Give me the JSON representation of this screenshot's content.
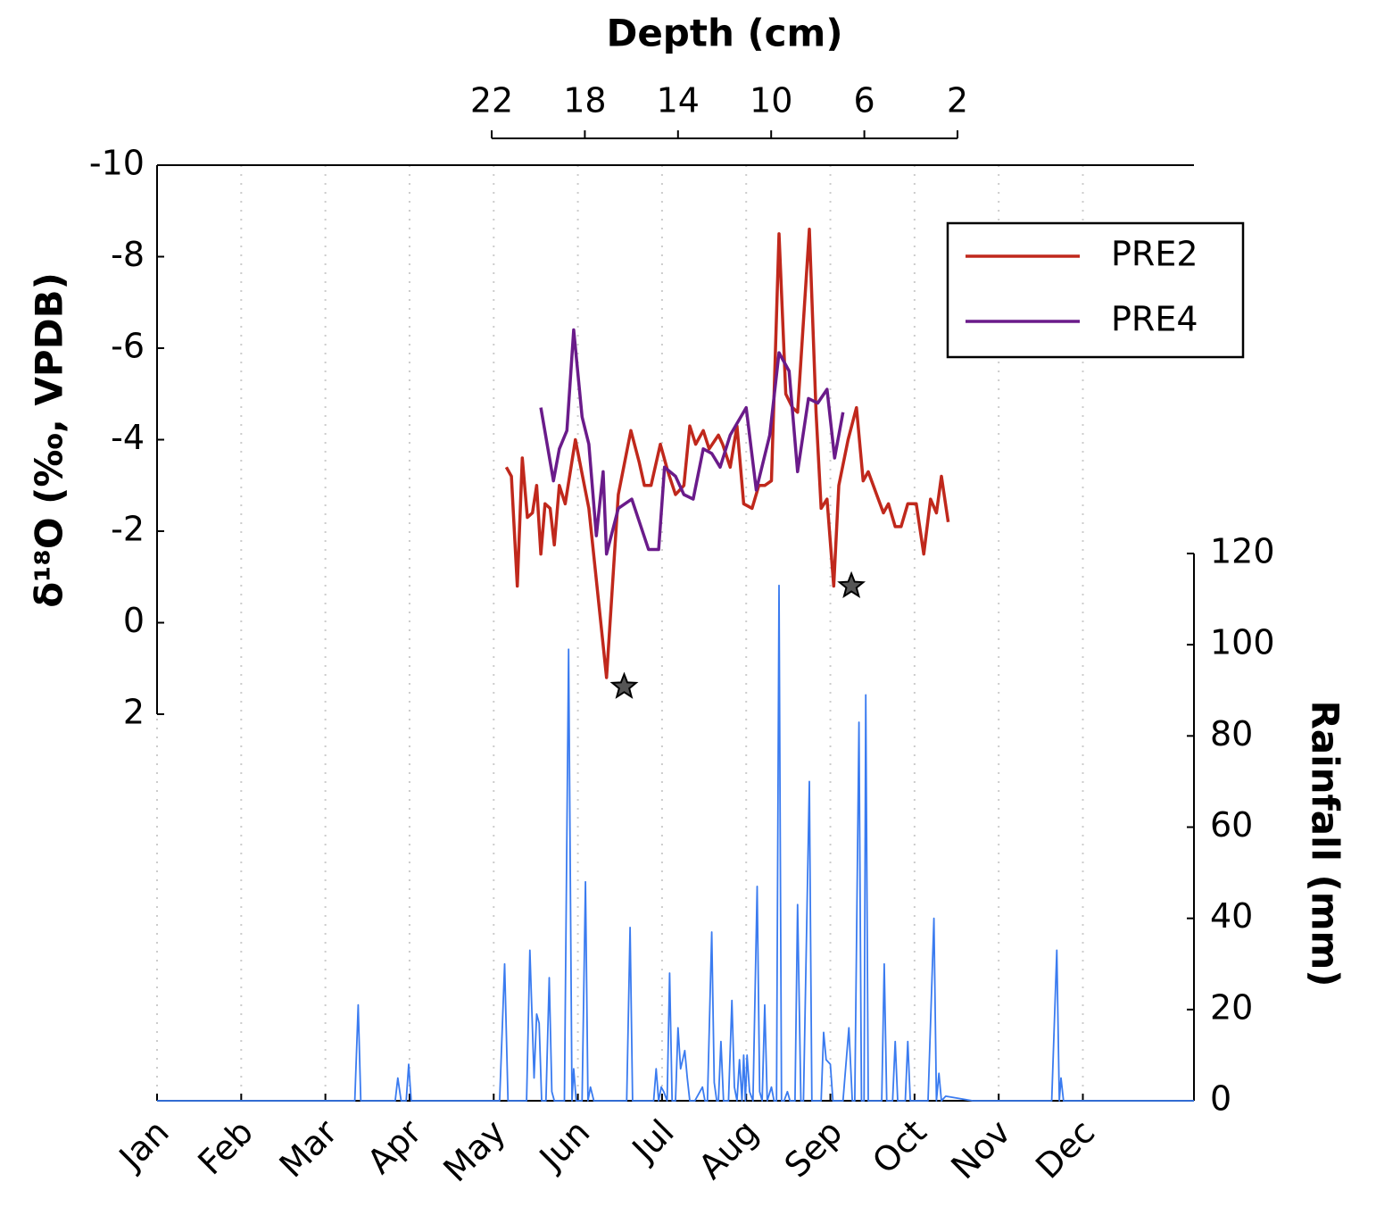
{
  "chart_data": {
    "type": "line",
    "x2label": "Depth (cm)",
    "ylabel": "δ¹⁸O (‰, VPDB)",
    "y2label": "Rainfall (mm)",
    "xlim": [
      0,
      12.32
    ],
    "xticks": [
      {
        "value": 0,
        "label": "Jan"
      },
      {
        "value": 1,
        "label": "Feb"
      },
      {
        "value": 2,
        "label": "Mar"
      },
      {
        "value": 3,
        "label": "Apr"
      },
      {
        "value": 4,
        "label": "May"
      },
      {
        "value": 5,
        "label": "Jun"
      },
      {
        "value": 6,
        "label": "Jul"
      },
      {
        "value": 7,
        "label": "Aug"
      },
      {
        "value": 8,
        "label": "Sep"
      },
      {
        "value": 9,
        "label": "Oct"
      },
      {
        "value": 10,
        "label": "Nov"
      },
      {
        "value": 11,
        "label": "Dec"
      }
    ],
    "x2lim": [
      22,
      2
    ],
    "x2ticks": [
      22,
      18,
      14,
      10,
      6,
      2
    ],
    "ylim": [
      -10,
      2
    ],
    "yticks": [
      -10,
      -8,
      -6,
      -4,
      -2,
      0,
      2
    ],
    "y2lim": [
      0,
      120
    ],
    "y2ticks": [
      0,
      20,
      40,
      60,
      80,
      100,
      120
    ],
    "grid": true,
    "legend": "upper right",
    "series": [
      {
        "name": "PRE2",
        "color": "#c0281c",
        "axis": "y",
        "x": [
          4.15,
          4.21,
          4.28,
          4.34,
          4.4,
          4.46,
          4.51,
          4.56,
          4.61,
          4.67,
          4.72,
          4.78,
          4.85,
          4.97,
          5.13,
          5.34,
          5.48,
          5.63,
          5.73,
          5.79,
          5.87,
          5.98,
          6.07,
          6.16,
          6.26,
          6.33,
          6.4,
          6.49,
          6.56,
          6.67,
          6.72,
          6.81,
          6.89,
          6.97,
          7.07,
          7.15,
          7.22,
          7.3,
          7.39,
          7.47,
          7.55,
          7.61,
          7.75,
          7.83,
          7.89,
          7.96,
          8.04,
          8.1,
          8.21,
          8.31,
          8.39,
          8.45,
          8.55,
          8.63,
          8.69,
          8.77,
          8.84,
          8.92,
          9.02,
          9.11,
          9.19,
          9.26,
          9.32,
          9.4
        ],
        "values": [
          -3.4,
          -3.2,
          -0.8,
          -3.6,
          -2.3,
          -2.4,
          -3.0,
          -1.5,
          -2.6,
          -2.5,
          -1.7,
          -3.0,
          -2.6,
          -4.0,
          -2.5,
          1.2,
          -2.8,
          -4.2,
          -3.5,
          -3.0,
          -3.0,
          -3.9,
          -3.3,
          -2.8,
          -3.0,
          -4.3,
          -3.9,
          -4.2,
          -3.8,
          -4.1,
          -3.9,
          -3.4,
          -4.3,
          -2.6,
          -2.5,
          -3.0,
          -3.0,
          -3.1,
          -8.5,
          -5.0,
          -4.7,
          -4.6,
          -8.6,
          -4.6,
          -2.5,
          -2.7,
          -0.8,
          -3.0,
          -4.0,
          -4.7,
          -3.1,
          -3.3,
          -2.8,
          -2.4,
          -2.6,
          -2.1,
          -2.1,
          -2.6,
          -2.6,
          -1.5,
          -2.7,
          -2.4,
          -3.2,
          -2.2
        ]
      },
      {
        "name": "PRE4",
        "color": "#6a1b8a",
        "axis": "y",
        "x": [
          4.56,
          4.71,
          4.78,
          4.87,
          4.95,
          5.05,
          5.13,
          5.22,
          5.3,
          5.34,
          5.48,
          5.64,
          5.84,
          5.96,
          6.03,
          6.16,
          6.26,
          6.37,
          6.49,
          6.59,
          6.69,
          6.81,
          7.0,
          7.12,
          7.28,
          7.39,
          7.51,
          7.61,
          7.74,
          7.85,
          7.96,
          8.05,
          8.15
        ],
        "values": [
          -4.7,
          -3.1,
          -3.8,
          -4.2,
          -6.4,
          -4.5,
          -3.9,
          -1.9,
          -3.3,
          -1.5,
          -2.5,
          -2.7,
          -1.6,
          -1.6,
          -3.4,
          -3.2,
          -2.8,
          -2.7,
          -3.8,
          -3.7,
          -3.4,
          -4.1,
          -4.7,
          -2.9,
          -4.1,
          -5.9,
          -5.5,
          -3.3,
          -4.9,
          -4.8,
          -5.1,
          -3.6,
          -4.6
        ]
      },
      {
        "color": "#3a7bf0",
        "axis": "y2",
        "x": [
          0,
          2.35,
          2.39,
          2.42,
          2.83,
          2.86,
          2.9,
          2.96,
          2.99,
          3.02,
          4.07,
          4.13,
          4.17,
          4.39,
          4.43,
          4.48,
          4.51,
          4.54,
          4.57,
          4.62,
          4.66,
          4.69,
          4.72,
          4.84,
          4.89,
          4.93,
          4.95,
          4.98,
          5.05,
          5.09,
          5.12,
          5.15,
          5.19,
          5.58,
          5.62,
          5.65,
          5.9,
          5.93,
          5.96,
          5.99,
          6.02,
          6.06,
          6.09,
          6.12,
          6.16,
          6.19,
          6.22,
          6.27,
          6.3,
          6.33,
          6.39,
          6.42,
          6.48,
          6.51,
          6.54,
          6.59,
          6.62,
          6.65,
          6.67,
          6.7,
          6.73,
          6.79,
          6.83,
          6.86,
          6.89,
          6.92,
          6.95,
          6.97,
          6.99,
          7.01,
          7.04,
          7.08,
          7.13,
          7.16,
          7.19,
          7.22,
          7.25,
          7.3,
          7.33,
          7.36,
          7.39,
          7.42,
          7.45,
          7.49,
          7.52,
          7.58,
          7.61,
          7.65,
          7.68,
          7.75,
          7.78,
          7.89,
          7.92,
          7.95,
          8.0,
          8.03,
          8.15,
          8.22,
          8.26,
          8.29,
          8.34,
          8.37,
          8.4,
          8.42,
          8.45,
          8.61,
          8.64,
          8.67,
          8.74,
          8.77,
          8.8,
          8.89,
          8.92,
          8.95,
          9.16,
          9.23,
          9.26,
          9.29,
          9.32,
          9.37,
          9.69,
          10.63,
          10.69,
          10.72,
          10.74,
          10.77,
          12.32
        ],
        "values": [
          0,
          0,
          21,
          0,
          0,
          5,
          0,
          0,
          8,
          0,
          0,
          30,
          0,
          0,
          33,
          5,
          19,
          17,
          0,
          0,
          27,
          2,
          0,
          0,
          99,
          0,
          7,
          0,
          0,
          48,
          0,
          3,
          0,
          0,
          38,
          0,
          0,
          7,
          0,
          3,
          2,
          0,
          28,
          0,
          0,
          16,
          7,
          11,
          5,
          0,
          0,
          1,
          3,
          0,
          0,
          37,
          4,
          0,
          0,
          13,
          0,
          0,
          22,
          3,
          0,
          9,
          0,
          10,
          0,
          10,
          2,
          0,
          47,
          2,
          0,
          21,
          0,
          3,
          0,
          0,
          113,
          0,
          0,
          2,
          0,
          0,
          43,
          0,
          0,
          70,
          0,
          0,
          15,
          9,
          8,
          0,
          0,
          16,
          0,
          0,
          83,
          0,
          0,
          89,
          0,
          0,
          30,
          0,
          0,
          13,
          0,
          0,
          13,
          0,
          0,
          40,
          0,
          6,
          0,
          1,
          0,
          0,
          33,
          0,
          5,
          0,
          0
        ]
      }
    ],
    "markers": [
      {
        "x": 5.55,
        "y": 1.4,
        "color": "#555555"
      },
      {
        "x": 8.25,
        "y": -0.8,
        "color": "#555555"
      }
    ]
  }
}
